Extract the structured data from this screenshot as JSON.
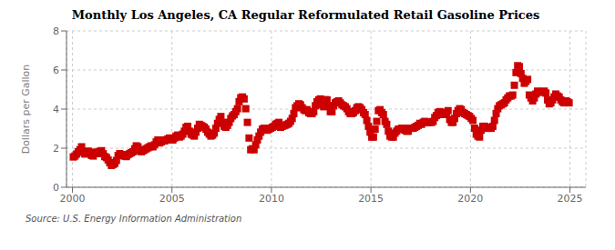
{
  "chart_data": {
    "type": "scatter",
    "title": "Monthly Los Angeles, CA Regular Reformulated Retail Gasoline Prices",
    "ylabel": "Dollars per Gallon",
    "annotations": [
      "Source: U.S. Energy Information Administration"
    ],
    "color": "#cc0000",
    "marker": "square",
    "grid": true,
    "xlim": [
      1999.7,
      2025.8
    ],
    "xticks": [
      2000,
      2005,
      2010,
      2015,
      2020,
      2025
    ],
    "ylim": [
      0,
      8
    ],
    "yticks": [
      0,
      2,
      4,
      6,
      8
    ],
    "x": [
      2000.042,
      2000.125,
      2000.208,
      2000.292,
      2000.375,
      2000.458,
      2000.542,
      2000.625,
      2000.708,
      2000.792,
      2000.875,
      2000.958,
      2001.042,
      2001.125,
      2001.208,
      2001.292,
      2001.375,
      2001.458,
      2001.542,
      2001.625,
      2001.708,
      2001.792,
      2001.875,
      2001.958,
      2002.042,
      2002.125,
      2002.208,
      2002.292,
      2002.375,
      2002.458,
      2002.542,
      2002.625,
      2002.708,
      2002.792,
      2002.875,
      2002.958,
      2003.042,
      2003.125,
      2003.208,
      2003.292,
      2003.375,
      2003.458,
      2003.542,
      2003.625,
      2003.708,
      2003.792,
      2003.875,
      2003.958,
      2004.042,
      2004.125,
      2004.208,
      2004.292,
      2004.375,
      2004.458,
      2004.542,
      2004.625,
      2004.708,
      2004.792,
      2004.875,
      2004.958,
      2005.042,
      2005.125,
      2005.208,
      2005.292,
      2005.375,
      2005.458,
      2005.542,
      2005.625,
      2005.708,
      2005.792,
      2005.875,
      2005.958,
      2006.042,
      2006.125,
      2006.208,
      2006.292,
      2006.375,
      2006.458,
      2006.542,
      2006.625,
      2006.708,
      2006.792,
      2006.875,
      2006.958,
      2007.042,
      2007.125,
      2007.208,
      2007.292,
      2007.375,
      2007.458,
      2007.542,
      2007.625,
      2007.708,
      2007.792,
      2007.875,
      2007.958,
      2008.042,
      2008.125,
      2008.208,
      2008.292,
      2008.375,
      2008.458,
      2008.542,
      2008.625,
      2008.708,
      2008.792,
      2008.875,
      2008.958,
      2009.042,
      2009.125,
      2009.208,
      2009.292,
      2009.375,
      2009.458,
      2009.542,
      2009.625,
      2009.708,
      2009.792,
      2009.875,
      2009.958,
      2010.042,
      2010.125,
      2010.208,
      2010.292,
      2010.375,
      2010.458,
      2010.542,
      2010.625,
      2010.708,
      2010.792,
      2010.875,
      2010.958,
      2011.042,
      2011.125,
      2011.208,
      2011.292,
      2011.375,
      2011.458,
      2011.542,
      2011.625,
      2011.708,
      2011.792,
      2011.875,
      2011.958,
      2012.042,
      2012.125,
      2012.208,
      2012.292,
      2012.375,
      2012.458,
      2012.542,
      2012.625,
      2012.708,
      2012.792,
      2012.875,
      2012.958,
      2013.042,
      2013.125,
      2013.208,
      2013.292,
      2013.375,
      2013.458,
      2013.542,
      2013.625,
      2013.708,
      2013.792,
      2013.875,
      2013.958,
      2014.042,
      2014.125,
      2014.208,
      2014.292,
      2014.375,
      2014.458,
      2014.542,
      2014.625,
      2014.708,
      2014.792,
      2014.875,
      2014.958,
      2015.042,
      2015.125,
      2015.208,
      2015.292,
      2015.375,
      2015.458,
      2015.542,
      2015.625,
      2015.708,
      2015.792,
      2015.875,
      2015.958,
      2016.042,
      2016.125,
      2016.208,
      2016.292,
      2016.375,
      2016.458,
      2016.542,
      2016.625,
      2016.708,
      2016.792,
      2016.875,
      2016.958,
      2017.042,
      2017.125,
      2017.208,
      2017.292,
      2017.375,
      2017.458,
      2017.542,
      2017.625,
      2017.708,
      2017.792,
      2017.875,
      2017.958,
      2018.042,
      2018.125,
      2018.208,
      2018.292,
      2018.375,
      2018.458,
      2018.542,
      2018.625,
      2018.708,
      2018.792,
      2018.875,
      2018.958,
      2019.042,
      2019.125,
      2019.208,
      2019.292,
      2019.375,
      2019.458,
      2019.542,
      2019.625,
      2019.708,
      2019.792,
      2019.875,
      2019.958,
      2020.042,
      2020.125,
      2020.208,
      2020.292,
      2020.375,
      2020.458,
      2020.542,
      2020.625,
      2020.708,
      2020.792,
      2020.875,
      2020.958,
      2021.042,
      2021.125,
      2021.208,
      2021.292,
      2021.375,
      2021.458,
      2021.542,
      2021.625,
      2021.708,
      2021.792,
      2021.875,
      2021.958,
      2022.042,
      2022.125,
      2022.208,
      2022.292,
      2022.375,
      2022.458,
      2022.542,
      2022.625,
      2022.708,
      2022.792,
      2022.875,
      2022.958,
      2023.042,
      2023.125,
      2023.208,
      2023.292,
      2023.375,
      2023.458,
      2023.542,
      2023.625,
      2023.708,
      2023.792,
      2023.875,
      2023.958,
      2024.042,
      2024.125,
      2024.208,
      2024.292,
      2024.375,
      2024.458,
      2024.542,
      2024.625,
      2024.708,
      2024.792,
      2024.875,
      2024.958
    ],
    "values": [
      1.55,
      1.6,
      1.7,
      1.82,
      1.92,
      2.07,
      1.79,
      1.7,
      1.78,
      1.85,
      1.74,
      1.63,
      1.6,
      1.8,
      1.72,
      1.76,
      1.84,
      1.87,
      1.72,
      1.57,
      1.52,
      1.4,
      1.26,
      1.12,
      1.17,
      1.22,
      1.37,
      1.62,
      1.72,
      1.67,
      1.62,
      1.6,
      1.57,
      1.67,
      1.72,
      1.77,
      1.82,
      1.97,
      2.12,
      2.07,
      1.87,
      1.82,
      1.87,
      1.92,
      1.97,
      2.02,
      2.07,
      2.12,
      2.07,
      2.17,
      2.32,
      2.42,
      2.27,
      2.32,
      2.42,
      2.37,
      2.42,
      2.47,
      2.52,
      2.47,
      2.42,
      2.52,
      2.62,
      2.67,
      2.57,
      2.62,
      2.72,
      2.87,
      3.07,
      3.12,
      2.87,
      2.72,
      2.67,
      2.62,
      2.82,
      3.02,
      3.22,
      3.17,
      3.12,
      3.07,
      2.97,
      2.82,
      2.72,
      2.62,
      2.67,
      2.77,
      3.02,
      3.27,
      3.47,
      3.62,
      3.32,
      3.12,
      3.07,
      3.17,
      3.32,
      3.52,
      3.65,
      3.72,
      3.87,
      4.02,
      4.38,
      4.58,
      4.62,
      4.52,
      4.02,
      3.32,
      2.52,
      1.92,
      1.97,
      1.92,
      2.17,
      2.42,
      2.62,
      2.82,
      2.97,
      3.02,
      2.97,
      2.92,
      2.97,
      3.02,
      3.07,
      3.12,
      3.22,
      3.27,
      3.32,
      3.07,
      3.12,
      3.15,
      3.18,
      3.22,
      3.27,
      3.37,
      3.52,
      3.77,
      4.07,
      4.17,
      4.27,
      4.22,
      4.07,
      3.97,
      3.92,
      3.97,
      3.82,
      3.77,
      3.77,
      3.87,
      4.17,
      4.37,
      4.47,
      4.52,
      4.22,
      4.12,
      4.48,
      4.47,
      4.17,
      3.87,
      3.87,
      4.17,
      4.32,
      4.37,
      4.42,
      4.32,
      4.22,
      4.17,
      4.12,
      4.02,
      3.87,
      3.77,
      3.77,
      3.82,
      3.92,
      4.07,
      4.12,
      4.07,
      3.97,
      3.82,
      3.72,
      3.42,
      3.12,
      2.82,
      2.57,
      2.57,
      2.97,
      3.37,
      3.92,
      3.97,
      3.82,
      3.72,
      3.37,
      3.22,
      2.87,
      2.62,
      2.57,
      2.57,
      2.77,
      2.87,
      2.97,
      2.97,
      3.02,
      3.02,
      2.92,
      2.87,
      2.87,
      3.02,
      3.02,
      3.02,
      3.07,
      3.12,
      3.17,
      3.27,
      3.22,
      3.32,
      3.37,
      3.32,
      3.32,
      3.32,
      3.32,
      3.37,
      3.57,
      3.67,
      3.82,
      3.87,
      3.82,
      3.72,
      3.72,
      3.82,
      3.92,
      3.47,
      3.32,
      3.32,
      3.52,
      3.77,
      3.92,
      4.02,
      3.97,
      3.82,
      3.77,
      3.72,
      3.67,
      3.62,
      3.52,
      3.42,
      3.02,
      2.72,
      2.62,
      2.57,
      2.92,
      3.12,
      3.12,
      3.07,
      3.02,
      3.02,
      3.02,
      3.12,
      3.42,
      3.77,
      4.02,
      4.17,
      4.22,
      4.27,
      4.32,
      4.47,
      4.57,
      4.67,
      4.67,
      4.72,
      5.22,
      5.87,
      6.22,
      6.17,
      5.82,
      5.57,
      5.32,
      5.42,
      5.52,
      4.72,
      4.57,
      4.42,
      4.57,
      4.77,
      4.92,
      4.87,
      4.87,
      4.87,
      4.92,
      4.82,
      4.47,
      4.27,
      4.32,
      4.47,
      4.62,
      4.77,
      4.67,
      4.62,
      4.47,
      4.37,
      4.32,
      4.42,
      4.37,
      4.32
    ]
  }
}
